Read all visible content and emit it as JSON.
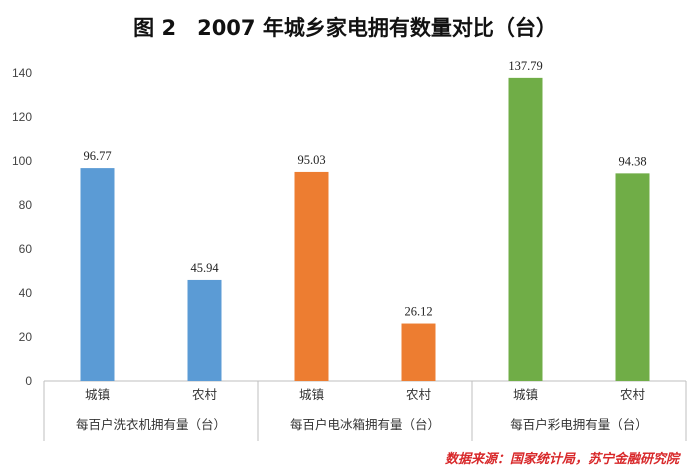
{
  "source": "数据来源：国家统计局，苏宁金融研究院",
  "chart_data": {
    "type": "bar",
    "title": "图 2　2007 年城乡家电拥有数量对比（台）",
    "ylim": [
      0,
      140
    ],
    "yticks": [
      "0",
      "20",
      "40",
      "60",
      "80",
      "100",
      "120",
      "140"
    ],
    "grid": false,
    "legend": "none",
    "groups": [
      {
        "label": "每百户洗衣机拥有量（台）",
        "color": "#5b9bd5",
        "bars": [
          {
            "category": "城镇",
            "value": 96.77,
            "label": "96.77"
          },
          {
            "category": "农村",
            "value": 45.94,
            "label": "45.94"
          }
        ]
      },
      {
        "label": "每百户电冰箱拥有量（台）",
        "color": "#ed7d31",
        "bars": [
          {
            "category": "城镇",
            "value": 95.03,
            "label": "95.03"
          },
          {
            "category": "农村",
            "value": 26.12,
            "label": "26.12"
          }
        ]
      },
      {
        "label": "每百户彩电拥有量（台）",
        "color": "#70ad47",
        "bars": [
          {
            "category": "城镇",
            "value": 137.79,
            "label": "137.79"
          },
          {
            "category": "农村",
            "value": 94.38,
            "label": "94.38"
          }
        ]
      }
    ]
  }
}
